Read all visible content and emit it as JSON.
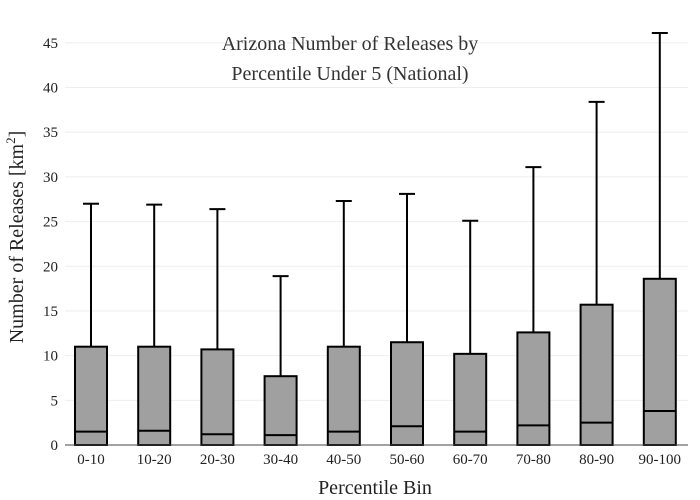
{
  "chart_data": {
    "type": "box",
    "title_lines": [
      "Arizona Number of Releases by",
      "Percentile Under 5 (National)"
    ],
    "xlabel": "Percentile Bin",
    "ylabel_main": "Number of Releases  [km",
    "ylabel_sup": "2",
    "ylabel_end": "]",
    "ylim": [
      0,
      47
    ],
    "yticks": [
      0,
      5,
      10,
      15,
      20,
      25,
      30,
      35,
      40,
      45
    ],
    "grid": true,
    "colors": {
      "box_fill": "#a0a0a0",
      "box_stroke": "#000000",
      "grid": "#eeeeee"
    },
    "categories": [
      "0-10",
      "10-20",
      "20-30",
      "30-40",
      "40-50",
      "50-60",
      "60-70",
      "70-80",
      "80-90",
      "90-100"
    ],
    "boxes": [
      {
        "min": 0,
        "q1": 0,
        "median": 1.5,
        "q3": 11.0,
        "max": 27.0
      },
      {
        "min": 0,
        "q1": 0,
        "median": 1.6,
        "q3": 11.0,
        "max": 26.9
      },
      {
        "min": 0,
        "q1": 0,
        "median": 1.2,
        "q3": 10.7,
        "max": 26.4
      },
      {
        "min": 0,
        "q1": 0,
        "median": 1.1,
        "q3": 7.7,
        "max": 18.9
      },
      {
        "min": 0,
        "q1": 0,
        "median": 1.5,
        "q3": 11.0,
        "max": 27.3
      },
      {
        "min": 0,
        "q1": 0,
        "median": 2.1,
        "q3": 11.5,
        "max": 28.1
      },
      {
        "min": 0,
        "q1": 0,
        "median": 1.5,
        "q3": 10.2,
        "max": 25.1
      },
      {
        "min": 0,
        "q1": 0,
        "median": 2.2,
        "q3": 12.6,
        "max": 31.1
      },
      {
        "min": 0,
        "q1": 0,
        "median": 2.5,
        "q3": 15.7,
        "max": 38.4
      },
      {
        "min": 0,
        "q1": 0,
        "median": 3.8,
        "q3": 18.6,
        "max": 46.1
      }
    ]
  }
}
